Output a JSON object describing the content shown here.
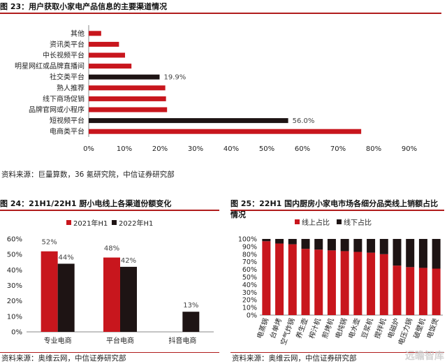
{
  "fig23": {
    "title": "图 23：用户获取小家电产品信息的主要渠道情况",
    "source": "资料来源：巨量算数，36 氪研究院，中信证券研究部"
  },
  "fig24": {
    "title": "图 24：21H1/22H1 厨小电线上各渠道份额变化",
    "source": "资料来源：奥维云网，中信证券研究部"
  },
  "fig25": {
    "title": "图 25：22H1 国内厨房小家电市场各细分品类线上销额占比情况",
    "source": "资料来源：奥维云网，中信证券研究部"
  },
  "watermark": "远瞻智库",
  "colors": {
    "red": "#c8161d",
    "black": "#1e1414",
    "accent": "#b01c1c"
  },
  "chart_data": [
    {
      "id": "fig23",
      "type": "bar",
      "orientation": "horizontal",
      "categories": [
        "其他",
        "资讯类平台",
        "中长视频平台",
        "明星网红或品牌直播间",
        "社交类平台",
        "熟人推荐",
        "线下商场促销",
        "品牌官网或小程序",
        "短视频平台",
        "电商类平台"
      ],
      "values": [
        3.5,
        8.5,
        10.2,
        12,
        19.9,
        21.5,
        21.7,
        22,
        56.0,
        76.5
      ],
      "highlight": [
        "black",
        "black"
      ],
      "bar_colors": [
        "red",
        "red",
        "red",
        "red",
        "black",
        "red",
        "red",
        "red",
        "black",
        "red"
      ],
      "data_labels": {
        "社交类平台": "19.9%",
        "短视频平台": "56.0%"
      },
      "xticks": [
        "0%",
        "10%",
        "20%",
        "30%",
        "40%",
        "50%",
        "60%",
        "70%",
        "80%",
        "90%"
      ],
      "xlim": [
        0,
        90
      ]
    },
    {
      "id": "fig24",
      "type": "bar",
      "categories": [
        "专业电商",
        "平台电商",
        "抖音电商"
      ],
      "series": [
        {
          "name": "2021年H1",
          "values": [
            52,
            48,
            null
          ],
          "labels": [
            "52%",
            "48%",
            ""
          ]
        },
        {
          "name": "2022年H1",
          "values": [
            44,
            42,
            13
          ],
          "labels": [
            "44%",
            "42%",
            "13%"
          ]
        }
      ],
      "yticks": [
        "0%",
        "10%",
        "20%",
        "30%",
        "40%",
        "50%",
        "60%"
      ],
      "ylim": [
        0,
        60
      ],
      "legend": "top"
    },
    {
      "id": "fig25",
      "type": "bar",
      "stacked": true,
      "categories": [
        "电蒸锅",
        "台单烤",
        "空气炸锅",
        "养生壶",
        "榨汁机",
        "煎烤机",
        "电炖锅",
        "电水壶",
        "豆浆机",
        "搅拌机",
        "电磁炉",
        "电压力锅",
        "破壁机",
        "电饭煲"
      ],
      "series": [
        {
          "name": "线上占比",
          "values": [
            97,
            94,
            93,
            87,
            86,
            85,
            84,
            83,
            82,
            80,
            65,
            63,
            62,
            61
          ]
        },
        {
          "name": "线下占比",
          "values": [
            3,
            6,
            7,
            13,
            14,
            15,
            16,
            17,
            18,
            20,
            35,
            37,
            38,
            39
          ]
        }
      ],
      "yticks": [
        "0%",
        "10%",
        "20%",
        "30%",
        "40%",
        "50%",
        "60%",
        "70%",
        "80%",
        "90%",
        "100%"
      ],
      "ylim": [
        0,
        100
      ],
      "legend": "top"
    }
  ]
}
